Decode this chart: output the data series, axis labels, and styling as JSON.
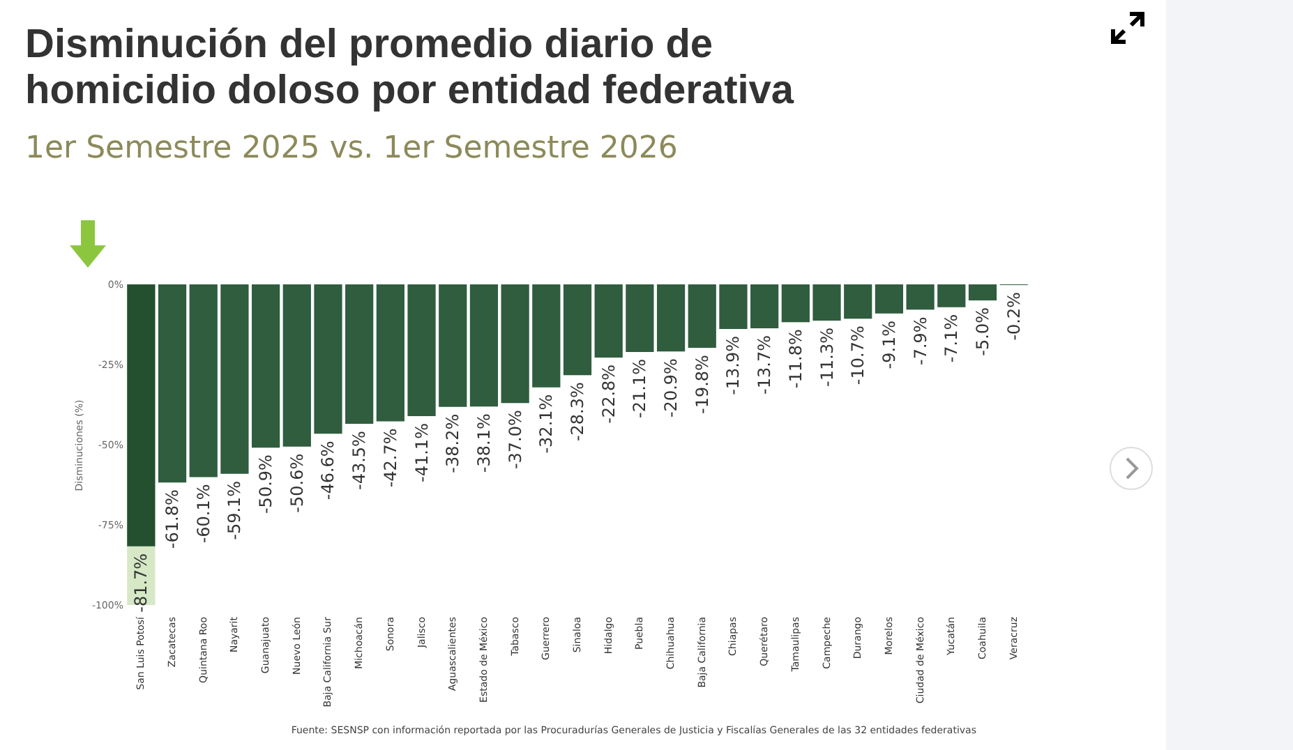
{
  "chart_data": {
    "type": "bar",
    "title": "Disminución del promedio diario de homicidio doloso por entidad federativa",
    "subtitle": "1er Semestre 2025 vs. 1er Semestre 2026",
    "ylabel": "Disminuciones (%)",
    "categories": [
      "San Luis Potosí",
      "Zacatecas",
      "Quintana Roo",
      "Nayarit",
      "Guanajuato",
      "Nuevo León",
      "Baja California Sur",
      "Michoacán",
      "Sonora",
      "Jalisco",
      "Aguascalientes",
      "Estado de México",
      "Tabasco",
      "Guerrero",
      "Sinaloa",
      "Hidalgo",
      "Puebla",
      "Chihuahua",
      "Baja California",
      "Chiapas",
      "Querétaro",
      "Tamaulipas",
      "Campeche",
      "Durango",
      "Morelos",
      "Ciudad de México",
      "Yucatán",
      "Coahuila",
      "Veracruz"
    ],
    "values": [
      -81.7,
      -61.8,
      -60.1,
      -59.1,
      -50.9,
      -50.6,
      -46.6,
      -43.5,
      -42.7,
      -41.1,
      -38.2,
      -38.1,
      -37.0,
      -32.1,
      -28.3,
      -22.8,
      -21.1,
      -20.9,
      -19.8,
      -13.9,
      -13.7,
      -11.8,
      -11.3,
      -10.7,
      -9.1,
      -7.9,
      -7.1,
      -5.0,
      -0.2
    ],
    "value_labels": [
      "-81.7%",
      "-61.8%",
      "-60.1%",
      "-59.1%",
      "-50.9%",
      "-50.6%",
      "-46.6%",
      "-43.5%",
      "-42.7%",
      "-41.1%",
      "-38.2%",
      "-38.1%",
      "-37.0%",
      "-32.1%",
      "-28.3%",
      "-22.8%",
      "-21.1%",
      "-20.9%",
      "-19.8%",
      "-13.9%",
      "-13.7%",
      "-11.8%",
      "-11.3%",
      "-10.7%",
      "-9.1%",
      "-7.9%",
      "-7.1%",
      "-5.0%",
      "-0.2%"
    ],
    "colors": [
      "#24502f",
      "#2f5d3e",
      "#2f5d3e",
      "#2f5d3e",
      "#2f5d3e",
      "#2f5d3e",
      "#2f5d3e",
      "#2f5d3e",
      "#2f5d3e",
      "#2f5d3e",
      "#2f5d3e",
      "#2f5d3e",
      "#2f5d3e",
      "#2f5d3e",
      "#2f5d3e",
      "#2f5d3e",
      "#2f5d3e",
      "#2f5d3e",
      "#2f5d3e",
      "#2f5d3e",
      "#2f5d3e",
      "#2f5d3e",
      "#2f5d3e",
      "#2f5d3e",
      "#2f5d3e",
      "#2f5d3e",
      "#2f5d3e",
      "#2f5d3e",
      "#2f5d3e"
    ],
    "ylim": [
      -100,
      0
    ],
    "yticks": [
      {
        "value": 0,
        "label": "0%"
      },
      {
        "value": -25,
        "label": "-25%"
      },
      {
        "value": -50,
        "label": "-50%"
      },
      {
        "value": -75,
        "label": "-75%"
      },
      {
        "value": -100,
        "label": "-100%"
      }
    ],
    "bands": [
      {
        "axis": "x",
        "from": "San Luis Potosí",
        "to": "San Luis Potosí",
        "color": "#d6e8c6"
      }
    ],
    "annotations": [
      "Fuente: SESNSP con información reportada por las Procuradurías Generales de Justicia y Fiscalías Generales de las 32 entidades federativas"
    ]
  }
}
